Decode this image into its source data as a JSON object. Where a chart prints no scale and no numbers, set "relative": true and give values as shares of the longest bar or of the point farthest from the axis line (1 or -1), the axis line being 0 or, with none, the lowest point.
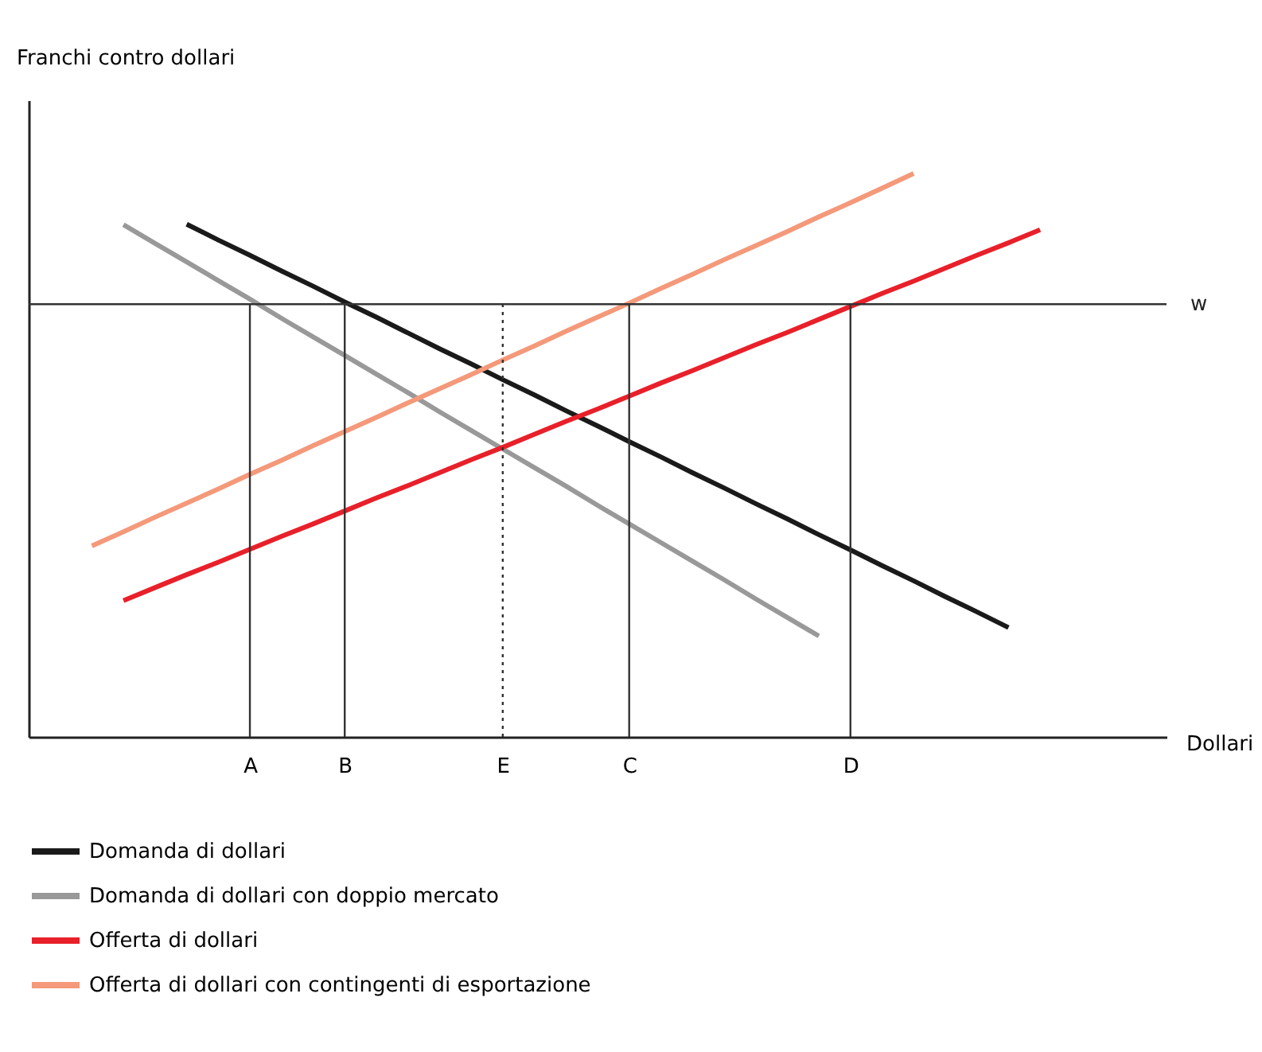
{
  "chart_data": {
    "type": "line",
    "relative": true,
    "xlabel": "Dollari",
    "ylabel": "Franchi contro dollari",
    "categories": [
      null,
      null,
      null,
      null,
      null,
      null,
      null,
      "A",
      null,
      null,
      "B",
      null,
      null,
      null,
      null,
      "E",
      null,
      null,
      null,
      "C",
      null,
      null,
      null,
      null,
      null,
      null,
      "D",
      null,
      null,
      null,
      null,
      null,
      null,
      null,
      null,
      null,
      null
    ],
    "series": [
      {
        "name": "Domanda di dollari",
        "color": "#1a1a1a",
        "values": [
          null,
          null,
          null,
          null,
          null,
          0.91,
          0.882,
          0.855,
          0.827,
          0.8,
          0.772,
          0.745,
          0.717,
          0.689,
          0.662,
          0.634,
          0.607,
          0.579,
          0.552,
          0.524,
          0.497,
          0.469,
          0.442,
          0.414,
          0.387,
          0.359,
          0.332,
          0.304,
          0.277,
          0.249,
          0.222,
          0.194,
          null,
          null,
          null,
          null,
          null
        ]
      },
      {
        "name": "Domanda di dollari con doppio mercato",
        "color": "#999999",
        "values": [
          null,
          null,
          null,
          0.909,
          0.876,
          0.843,
          0.81,
          0.777,
          0.743,
          0.71,
          0.677,
          0.644,
          0.611,
          0.577,
          0.544,
          0.511,
          0.478,
          0.445,
          0.411,
          0.378,
          0.345,
          0.312,
          0.279,
          0.245,
          0.212,
          0.179,
          null,
          null,
          null,
          null,
          null,
          null,
          null,
          null,
          null,
          null,
          null
        ]
      },
      {
        "name": "Offerta di dollari",
        "color": "#e8202a",
        "values": [
          null,
          null,
          null,
          0.242,
          0.265,
          0.288,
          0.31,
          0.333,
          0.356,
          0.378,
          0.401,
          0.424,
          0.446,
          0.469,
          0.492,
          0.514,
          0.537,
          0.56,
          0.582,
          0.605,
          0.628,
          0.65,
          0.673,
          0.696,
          0.718,
          0.741,
          0.764,
          0.787,
          0.809,
          0.832,
          0.855,
          0.877,
          0.9,
          null,
          null,
          null,
          null
        ]
      },
      {
        "name": "Offerta di dollari con contingenti di esportazione",
        "color": "#f4997a",
        "values": [
          null,
          null,
          0.339,
          0.364,
          0.39,
          0.415,
          0.44,
          0.466,
          0.491,
          0.517,
          0.542,
          0.567,
          0.593,
          0.618,
          0.643,
          0.669,
          0.694,
          0.72,
          0.745,
          0.77,
          0.796,
          0.821,
          0.847,
          0.872,
          0.897,
          0.923,
          0.948,
          0.974,
          1.0,
          null,
          null,
          null,
          null,
          null,
          null,
          null,
          null
        ]
      }
    ],
    "ref_lines": [
      {
        "axis": "y",
        "value": 0.768,
        "label": "w",
        "color": "#333333",
        "line_style": "solid"
      },
      {
        "axis": "x",
        "value": "A",
        "color": "#333333",
        "line_style": "solid"
      },
      {
        "axis": "x",
        "value": "B",
        "color": "#333333",
        "line_style": "solid"
      },
      {
        "axis": "x",
        "value": "E",
        "color": "#333333",
        "line_style": "dotted"
      },
      {
        "axis": "x",
        "value": "C",
        "color": "#333333",
        "line_style": "solid"
      },
      {
        "axis": "x",
        "value": "D",
        "color": "#333333",
        "line_style": "solid"
      }
    ],
    "legend": "bottom",
    "grid": false,
    "marker": "none",
    "line_style": "solid"
  }
}
